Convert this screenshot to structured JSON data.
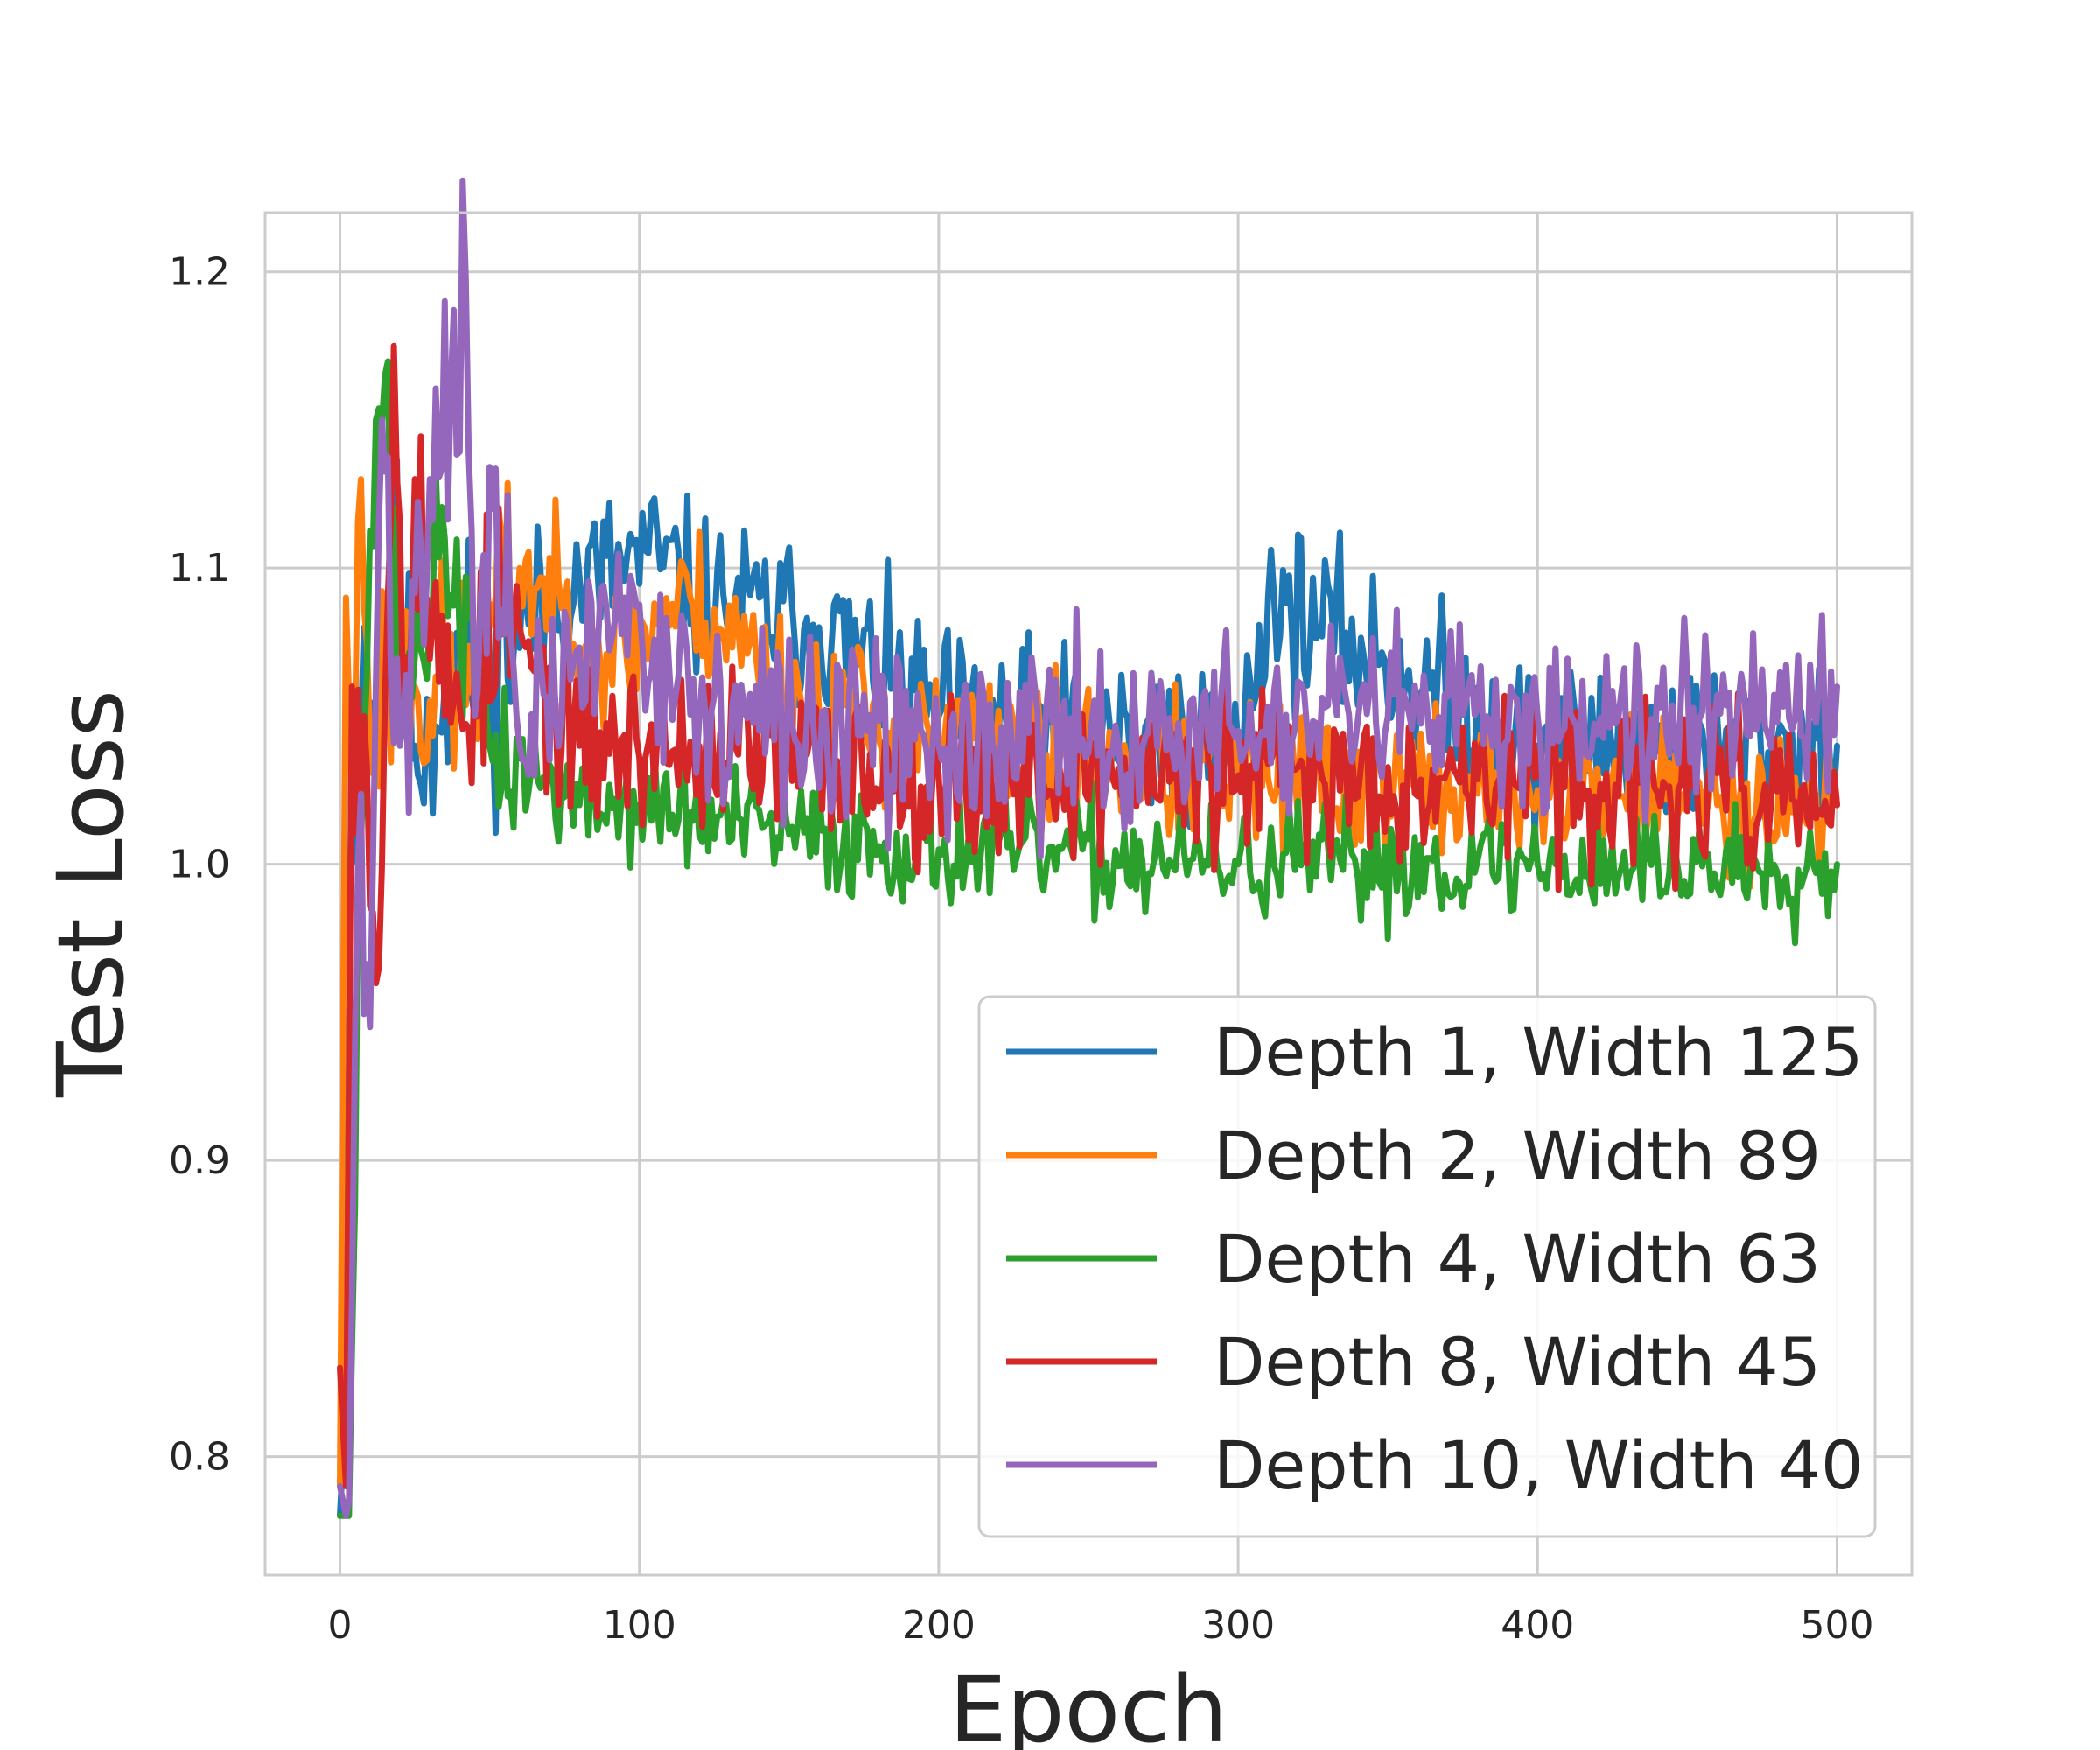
{
  "chart_data": {
    "type": "line",
    "title": "",
    "xlabel": "Epoch",
    "ylabel": "Test Loss",
    "xlim": [
      -25,
      525
    ],
    "ylim": [
      0.76,
      1.22
    ],
    "xticks": [
      0,
      100,
      200,
      300,
      400,
      500
    ],
    "xtick_labels": [
      "0",
      "100",
      "200",
      "300",
      "400",
      "500"
    ],
    "yticks": [
      0.8,
      0.9,
      1.0,
      1.1,
      1.2
    ],
    "ytick_labels": [
      "0.8",
      "0.9",
      "1.0",
      "1.1",
      "1.2"
    ],
    "grid": true,
    "legend_position": "lower-right",
    "series": [
      {
        "name": "Depth 1, Width 125",
        "color": "#1f77b4",
        "keypoints": [
          [
            0,
            0.78
          ],
          [
            2,
            0.82
          ],
          [
            4,
            1.06
          ],
          [
            6,
            1.0
          ],
          [
            8,
            1.08
          ],
          [
            12,
            1.05
          ],
          [
            18,
            1.1
          ],
          [
            25,
            1.04
          ],
          [
            35,
            1.06
          ],
          [
            50,
            1.07
          ],
          [
            70,
            1.09
          ],
          [
            103,
            1.105
          ],
          [
            120,
            1.09
          ],
          [
            160,
            1.08
          ],
          [
            200,
            1.05
          ],
          [
            300,
            1.04
          ],
          [
            310,
            1.09
          ],
          [
            400,
            1.04
          ],
          [
            500,
            1.04
          ]
        ],
        "mean": 1.04,
        "noise": 0.02,
        "seed": 11
      },
      {
        "name": "Depth 2, Width 89",
        "color": "#ff7f0e",
        "keypoints": [
          [
            0,
            0.79
          ],
          [
            2,
            1.09
          ],
          [
            4,
            1.02
          ],
          [
            7,
            1.13
          ],
          [
            10,
            1.04
          ],
          [
            15,
            1.07
          ],
          [
            25,
            1.06
          ],
          [
            40,
            1.06
          ],
          [
            60,
            1.1
          ],
          [
            90,
            1.07
          ],
          [
            117,
            1.09
          ],
          [
            150,
            1.06
          ],
          [
            200,
            1.04
          ],
          [
            300,
            1.03
          ],
          [
            400,
            1.025
          ],
          [
            500,
            1.02
          ]
        ],
        "mean": 1.035,
        "noise": 0.018,
        "seed": 23
      },
      {
        "name": "Depth 4, Width 63",
        "color": "#2ca02c",
        "keypoints": [
          [
            0,
            0.78
          ],
          [
            3,
            0.78
          ],
          [
            6,
            0.99
          ],
          [
            12,
            1.15
          ],
          [
            15,
            1.165
          ],
          [
            20,
            1.05
          ],
          [
            25,
            1.07
          ],
          [
            35,
            1.11
          ],
          [
            50,
            1.04
          ],
          [
            80,
            1.02
          ],
          [
            100,
            1.02
          ],
          [
            150,
            1.01
          ],
          [
            200,
            1.005
          ],
          [
            300,
            1.0
          ],
          [
            400,
            1.0
          ],
          [
            500,
            1.0
          ]
        ],
        "mean": 1.0,
        "noise": 0.014,
        "seed": 37
      },
      {
        "name": "Depth 8, Width 45",
        "color": "#d62728",
        "keypoints": [
          [
            0,
            0.83
          ],
          [
            2,
            0.79
          ],
          [
            4,
            1.06
          ],
          [
            8,
            1.05
          ],
          [
            13,
            0.965
          ],
          [
            18,
            1.175
          ],
          [
            22,
            1.07
          ],
          [
            25,
            1.13
          ],
          [
            35,
            1.05
          ],
          [
            55,
            1.08
          ],
          [
            80,
            1.04
          ],
          [
            120,
            1.04
          ],
          [
            200,
            1.03
          ],
          [
            300,
            1.03
          ],
          [
            400,
            1.03
          ],
          [
            500,
            1.02
          ]
        ],
        "mean": 1.03,
        "noise": 0.02,
        "seed": 53
      },
      {
        "name": "Depth 10, Width 40",
        "color": "#9467bd",
        "keypoints": [
          [
            0,
            0.79
          ],
          [
            2,
            0.78
          ],
          [
            3,
            0.785
          ],
          [
            6,
            1.0
          ],
          [
            10,
            0.945
          ],
          [
            14,
            1.15
          ],
          [
            20,
            1.04
          ],
          [
            30,
            1.13
          ],
          [
            42,
            1.198
          ],
          [
            45,
            1.05
          ],
          [
            51,
            1.12
          ],
          [
            60,
            1.04
          ],
          [
            95,
            1.09
          ],
          [
            120,
            1.05
          ],
          [
            200,
            1.04
          ],
          [
            300,
            1.045
          ],
          [
            400,
            1.05
          ],
          [
            500,
            1.06
          ]
        ],
        "mean": 1.045,
        "noise": 0.022,
        "seed": 71
      }
    ]
  }
}
